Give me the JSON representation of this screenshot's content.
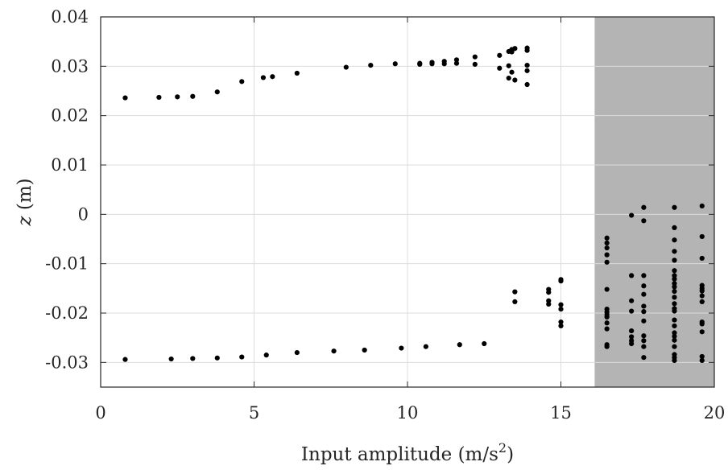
{
  "chart_data": {
    "type": "scatter",
    "xlabel": "Input amplitude (m/s",
    "xlabel_sup": "2",
    "xlabel_end": ")",
    "ylabel_var": "z",
    "ylabel_unit": " (m)",
    "xlim": [
      0,
      20
    ],
    "ylim": [
      -0.035,
      0.04
    ],
    "x_ticks": [
      0,
      5,
      10,
      15,
      20
    ],
    "x_tick_labels": [
      "0",
      "5",
      "10",
      "15",
      "20"
    ],
    "y_ticks": [
      0.04,
      0.03,
      0.02,
      0.01,
      0,
      -0.01,
      -0.02,
      -0.03
    ],
    "y_tick_labels": [
      "0.04",
      "0.03",
      "0.02",
      "0.01",
      "0",
      "-0.01",
      "-0.02",
      "-0.03"
    ],
    "grid": true,
    "shaded_region": {
      "x_from": 16.1,
      "x_to": 20,
      "color": "#b4b4b4"
    },
    "marker_color": "#000000",
    "points": [
      [
        0.8,
        0.0236
      ],
      [
        1.9,
        0.0237
      ],
      [
        2.5,
        0.0238
      ],
      [
        3.0,
        0.0239
      ],
      [
        3.8,
        0.0248
      ],
      [
        4.6,
        0.0269
      ],
      [
        5.3,
        0.0277
      ],
      [
        5.6,
        0.0279
      ],
      [
        6.4,
        0.0286
      ],
      [
        8.0,
        0.0298
      ],
      [
        8.8,
        0.0302
      ],
      [
        9.6,
        0.0305
      ],
      [
        10.4,
        0.0306
      ],
      [
        10.4,
        0.0304
      ],
      [
        10.8,
        0.0308
      ],
      [
        10.8,
        0.0305
      ],
      [
        11.2,
        0.031
      ],
      [
        11.2,
        0.0305
      ],
      [
        11.6,
        0.0313
      ],
      [
        11.6,
        0.0306
      ],
      [
        12.2,
        0.0319
      ],
      [
        12.2,
        0.0304
      ],
      [
        13.0,
        0.0322
      ],
      [
        13.0,
        0.0296
      ],
      [
        13.3,
        0.033
      ],
      [
        13.3,
        0.0301
      ],
      [
        13.3,
        0.0276
      ],
      [
        13.4,
        0.0334
      ],
      [
        13.4,
        0.0329
      ],
      [
        13.4,
        0.0288
      ],
      [
        13.5,
        0.0336
      ],
      [
        13.5,
        0.0272
      ],
      [
        13.9,
        0.0337
      ],
      [
        13.9,
        0.0332
      ],
      [
        13.9,
        0.0302
      ],
      [
        13.9,
        0.0291
      ],
      [
        13.9,
        0.0263
      ],
      [
        0.8,
        -0.0294
      ],
      [
        2.3,
        -0.0293
      ],
      [
        3.0,
        -0.0292
      ],
      [
        3.8,
        -0.0291
      ],
      [
        4.6,
        -0.0289
      ],
      [
        5.4,
        -0.0285
      ],
      [
        6.4,
        -0.028
      ],
      [
        7.6,
        -0.0277
      ],
      [
        8.6,
        -0.0275
      ],
      [
        9.8,
        -0.0271
      ],
      [
        10.6,
        -0.0268
      ],
      [
        11.7,
        -0.0264
      ],
      [
        12.5,
        -0.0262
      ],
      [
        13.5,
        -0.0157
      ],
      [
        13.5,
        -0.0177
      ],
      [
        14.6,
        -0.0152
      ],
      [
        14.6,
        -0.0158
      ],
      [
        14.6,
        -0.0175
      ],
      [
        14.6,
        -0.0182
      ],
      [
        15.0,
        -0.0132
      ],
      [
        15.0,
        -0.0135
      ],
      [
        15.0,
        -0.0183
      ],
      [
        15.0,
        -0.0192
      ],
      [
        15.0,
        -0.0218
      ],
      [
        15.0,
        -0.0226
      ],
      [
        16.5,
        -0.0048
      ],
      [
        16.5,
        -0.0058
      ],
      [
        16.5,
        -0.0068
      ],
      [
        16.5,
        -0.0082
      ],
      [
        16.5,
        -0.0097
      ],
      [
        16.5,
        -0.0152
      ],
      [
        16.5,
        -0.0192
      ],
      [
        16.5,
        -0.0198
      ],
      [
        16.5,
        -0.0203
      ],
      [
        16.5,
        -0.0208
      ],
      [
        16.5,
        -0.022
      ],
      [
        16.5,
        -0.0232
      ],
      [
        16.5,
        -0.0264
      ],
      [
        16.5,
        -0.0268
      ],
      [
        17.3,
        -0.0002
      ],
      [
        17.3,
        -0.0124
      ],
      [
        17.3,
        -0.0175
      ],
      [
        17.3,
        -0.0196
      ],
      [
        17.3,
        -0.0236
      ],
      [
        17.3,
        -0.0248
      ],
      [
        17.3,
        -0.0256
      ],
      [
        17.3,
        -0.0262
      ],
      [
        17.7,
        0.0014
      ],
      [
        17.7,
        -0.0013
      ],
      [
        17.7,
        -0.0124
      ],
      [
        17.7,
        -0.0145
      ],
      [
        17.7,
        -0.0162
      ],
      [
        17.7,
        -0.0186
      ],
      [
        17.7,
        -0.0197
      ],
      [
        17.7,
        -0.0216
      ],
      [
        17.7,
        -0.0246
      ],
      [
        17.7,
        -0.0256
      ],
      [
        17.7,
        -0.0268
      ],
      [
        17.7,
        -0.029
      ],
      [
        18.7,
        0.0014
      ],
      [
        18.7,
        -0.0027
      ],
      [
        18.7,
        -0.0052
      ],
      [
        18.7,
        -0.0075
      ],
      [
        18.7,
        -0.0093
      ],
      [
        18.7,
        -0.0114
      ],
      [
        18.7,
        -0.0124
      ],
      [
        18.7,
        -0.0131
      ],
      [
        18.7,
        -0.014
      ],
      [
        18.7,
        -0.0147
      ],
      [
        18.7,
        -0.0156
      ],
      [
        18.7,
        -0.0168
      ],
      [
        18.7,
        -0.0181
      ],
      [
        18.7,
        -0.0191
      ],
      [
        18.7,
        -0.0196
      ],
      [
        18.7,
        -0.0214
      ],
      [
        18.7,
        -0.0226
      ],
      [
        18.7,
        -0.024
      ],
      [
        18.7,
        -0.0247
      ],
      [
        18.7,
        -0.0255
      ],
      [
        18.7,
        -0.0268
      ],
      [
        18.7,
        -0.0284
      ],
      [
        18.7,
        -0.029
      ],
      [
        18.7,
        -0.0296
      ],
      [
        19.6,
        0.0017
      ],
      [
        19.6,
        -0.0045
      ],
      [
        19.6,
        -0.0089
      ],
      [
        19.6,
        -0.0144
      ],
      [
        19.6,
        -0.015
      ],
      [
        19.6,
        -0.0155
      ],
      [
        19.6,
        -0.0165
      ],
      [
        19.6,
        -0.0177
      ],
      [
        19.6,
        -0.0218
      ],
      [
        19.6,
        -0.0222
      ],
      [
        19.6,
        -0.0238
      ],
      [
        19.6,
        -0.0288
      ],
      [
        19.6,
        -0.0296
      ]
    ]
  }
}
